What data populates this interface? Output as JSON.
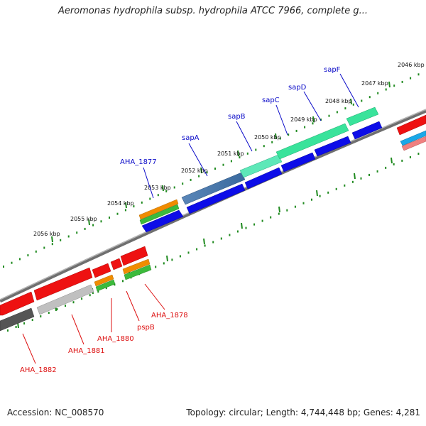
{
  "title": "Aeromonas hydrophila subsp. hydrophila ATCC 7966, complete g...",
  "footer": {
    "accession": "Accession: NC_008570",
    "summary": "Topology: circular; Length: 4,744,448 bp; Genes: 4,281"
  },
  "colors": {
    "forward_label": "#0a0ac8",
    "reverse_label": "#dd1111",
    "backbone": "#888888",
    "ticks": "#1f8a1f"
  },
  "scale_ticks": [
    {
      "label": "2046 kbp"
    },
    {
      "label": "2047 kbp"
    },
    {
      "label": "2048 kbp"
    },
    {
      "label": "2049 kbp"
    },
    {
      "label": "2050 kbp"
    },
    {
      "label": "2051 kbp"
    },
    {
      "label": "2052 kbp"
    },
    {
      "label": "2053 kbp"
    },
    {
      "label": "2054 kbp"
    },
    {
      "label": "2055 kbp"
    },
    {
      "label": "2056 kbp"
    }
  ],
  "forward_labels": [
    {
      "name": "sapF"
    },
    {
      "name": "sapD"
    },
    {
      "name": "sapC"
    },
    {
      "name": "sapB"
    },
    {
      "name": "sapA"
    },
    {
      "name": "AHA_1877"
    }
  ],
  "reverse_labels": [
    {
      "name": "AHA_1878"
    },
    {
      "name": "pspB"
    },
    {
      "name": "AHA_1880"
    },
    {
      "name": "AHA_1881"
    },
    {
      "name": "AHA_1882"
    }
  ]
}
